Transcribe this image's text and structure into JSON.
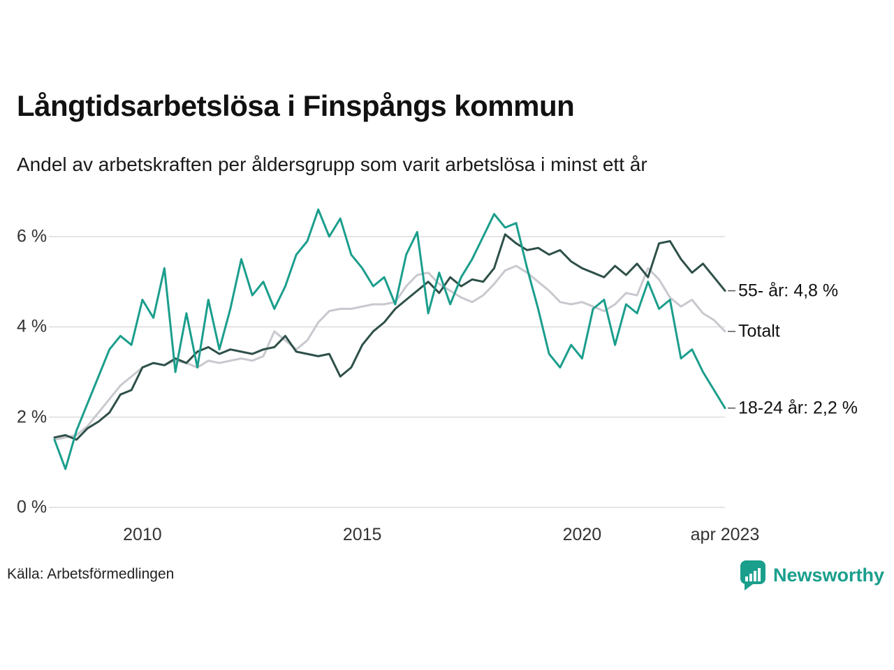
{
  "title": "Långtidsarbetslösa i Finspångs kommun",
  "subtitle": "Andel av arbetskraften per åldersgrupp som varit arbetslösa i minst ett år",
  "source": "Källa: Arbetsförmedlingen",
  "brand": {
    "name": "Newsworthy",
    "color": "#1a9f8c"
  },
  "colors": {
    "grid": "#dcdcdc",
    "axis_text": "#333333",
    "connector": "#555555"
  },
  "chart_data": {
    "type": "line",
    "title": "Långtidsarbetslösa i Finspångs kommun",
    "subtitle": "Andel av arbetskraften per åldersgrupp som varit arbetslösa i minst ett år",
    "x_unit": "year",
    "x_start": 2008.0,
    "x_step": 0.25,
    "x_end": 2023.25,
    "ylim": [
      0,
      6.6
    ],
    "grid": true,
    "y_ticks": [
      {
        "value": 0,
        "label": "0 %"
      },
      {
        "value": 2,
        "label": "2 %"
      },
      {
        "value": 4,
        "label": "4 %"
      },
      {
        "value": 6,
        "label": "6 %"
      }
    ],
    "x_ticks": [
      {
        "value": 2010,
        "label": "2010"
      },
      {
        "value": 2015,
        "label": "2015"
      },
      {
        "value": 2020,
        "label": "2020"
      },
      {
        "value": 2023.25,
        "label": "apr 2023"
      }
    ],
    "series": [
      {
        "name": "Totalt",
        "end_label": "Totalt",
        "color": "#c8c8cf",
        "values": [
          1.5,
          1.55,
          1.6,
          1.8,
          2.1,
          2.4,
          2.7,
          2.9,
          3.1,
          3.2,
          3.15,
          3.25,
          3.2,
          3.1,
          3.25,
          3.2,
          3.25,
          3.3,
          3.25,
          3.35,
          3.9,
          3.7,
          3.5,
          3.7,
          4.1,
          4.35,
          4.4,
          4.4,
          4.45,
          4.5,
          4.5,
          4.55,
          4.9,
          5.15,
          5.2,
          4.95,
          4.8,
          4.65,
          4.55,
          4.7,
          4.95,
          5.25,
          5.35,
          5.2,
          5.0,
          4.8,
          4.55,
          4.5,
          4.55,
          4.45,
          4.35,
          4.5,
          4.75,
          4.7,
          5.3,
          5.05,
          4.65,
          4.45,
          4.6,
          4.3,
          4.15,
          3.9
        ]
      },
      {
        "name": "55- år",
        "end_label": "55- år: 4,8 %",
        "color": "#2e5049",
        "values": [
          1.55,
          1.6,
          1.5,
          1.75,
          1.9,
          2.1,
          2.5,
          2.6,
          3.1,
          3.2,
          3.15,
          3.3,
          3.2,
          3.45,
          3.55,
          3.4,
          3.5,
          3.45,
          3.4,
          3.5,
          3.55,
          3.8,
          3.45,
          3.4,
          3.35,
          3.4,
          2.9,
          3.1,
          3.6,
          3.9,
          4.1,
          4.4,
          4.6,
          4.8,
          5.0,
          4.75,
          5.1,
          4.9,
          5.05,
          5.0,
          5.3,
          6.05,
          5.85,
          5.7,
          5.75,
          5.6,
          5.7,
          5.45,
          5.3,
          5.2,
          5.1,
          5.35,
          5.15,
          5.4,
          5.1,
          5.85,
          5.9,
          5.5,
          5.2,
          5.4,
          5.1,
          4.8
        ]
      },
      {
        "name": "18-24 år",
        "end_label": "18-24 år: 2,2 %",
        "color": "#1b9e8c",
        "values": [
          1.5,
          0.85,
          1.7,
          2.3,
          2.9,
          3.5,
          3.8,
          3.6,
          4.6,
          4.2,
          5.3,
          3.0,
          4.3,
          3.1,
          4.6,
          3.5,
          4.4,
          5.5,
          4.7,
          5.0,
          4.4,
          4.9,
          5.6,
          5.9,
          6.6,
          6.0,
          6.4,
          5.6,
          5.3,
          4.9,
          5.1,
          4.5,
          5.6,
          6.1,
          4.3,
          5.2,
          4.5,
          5.1,
          5.5,
          6.0,
          6.5,
          6.2,
          6.3,
          5.3,
          4.4,
          3.4,
          3.1,
          3.6,
          3.3,
          4.4,
          4.6,
          3.6,
          4.5,
          4.3,
          5.0,
          4.4,
          4.6,
          3.3,
          3.5,
          3.0,
          2.6,
          2.2
        ]
      }
    ]
  }
}
